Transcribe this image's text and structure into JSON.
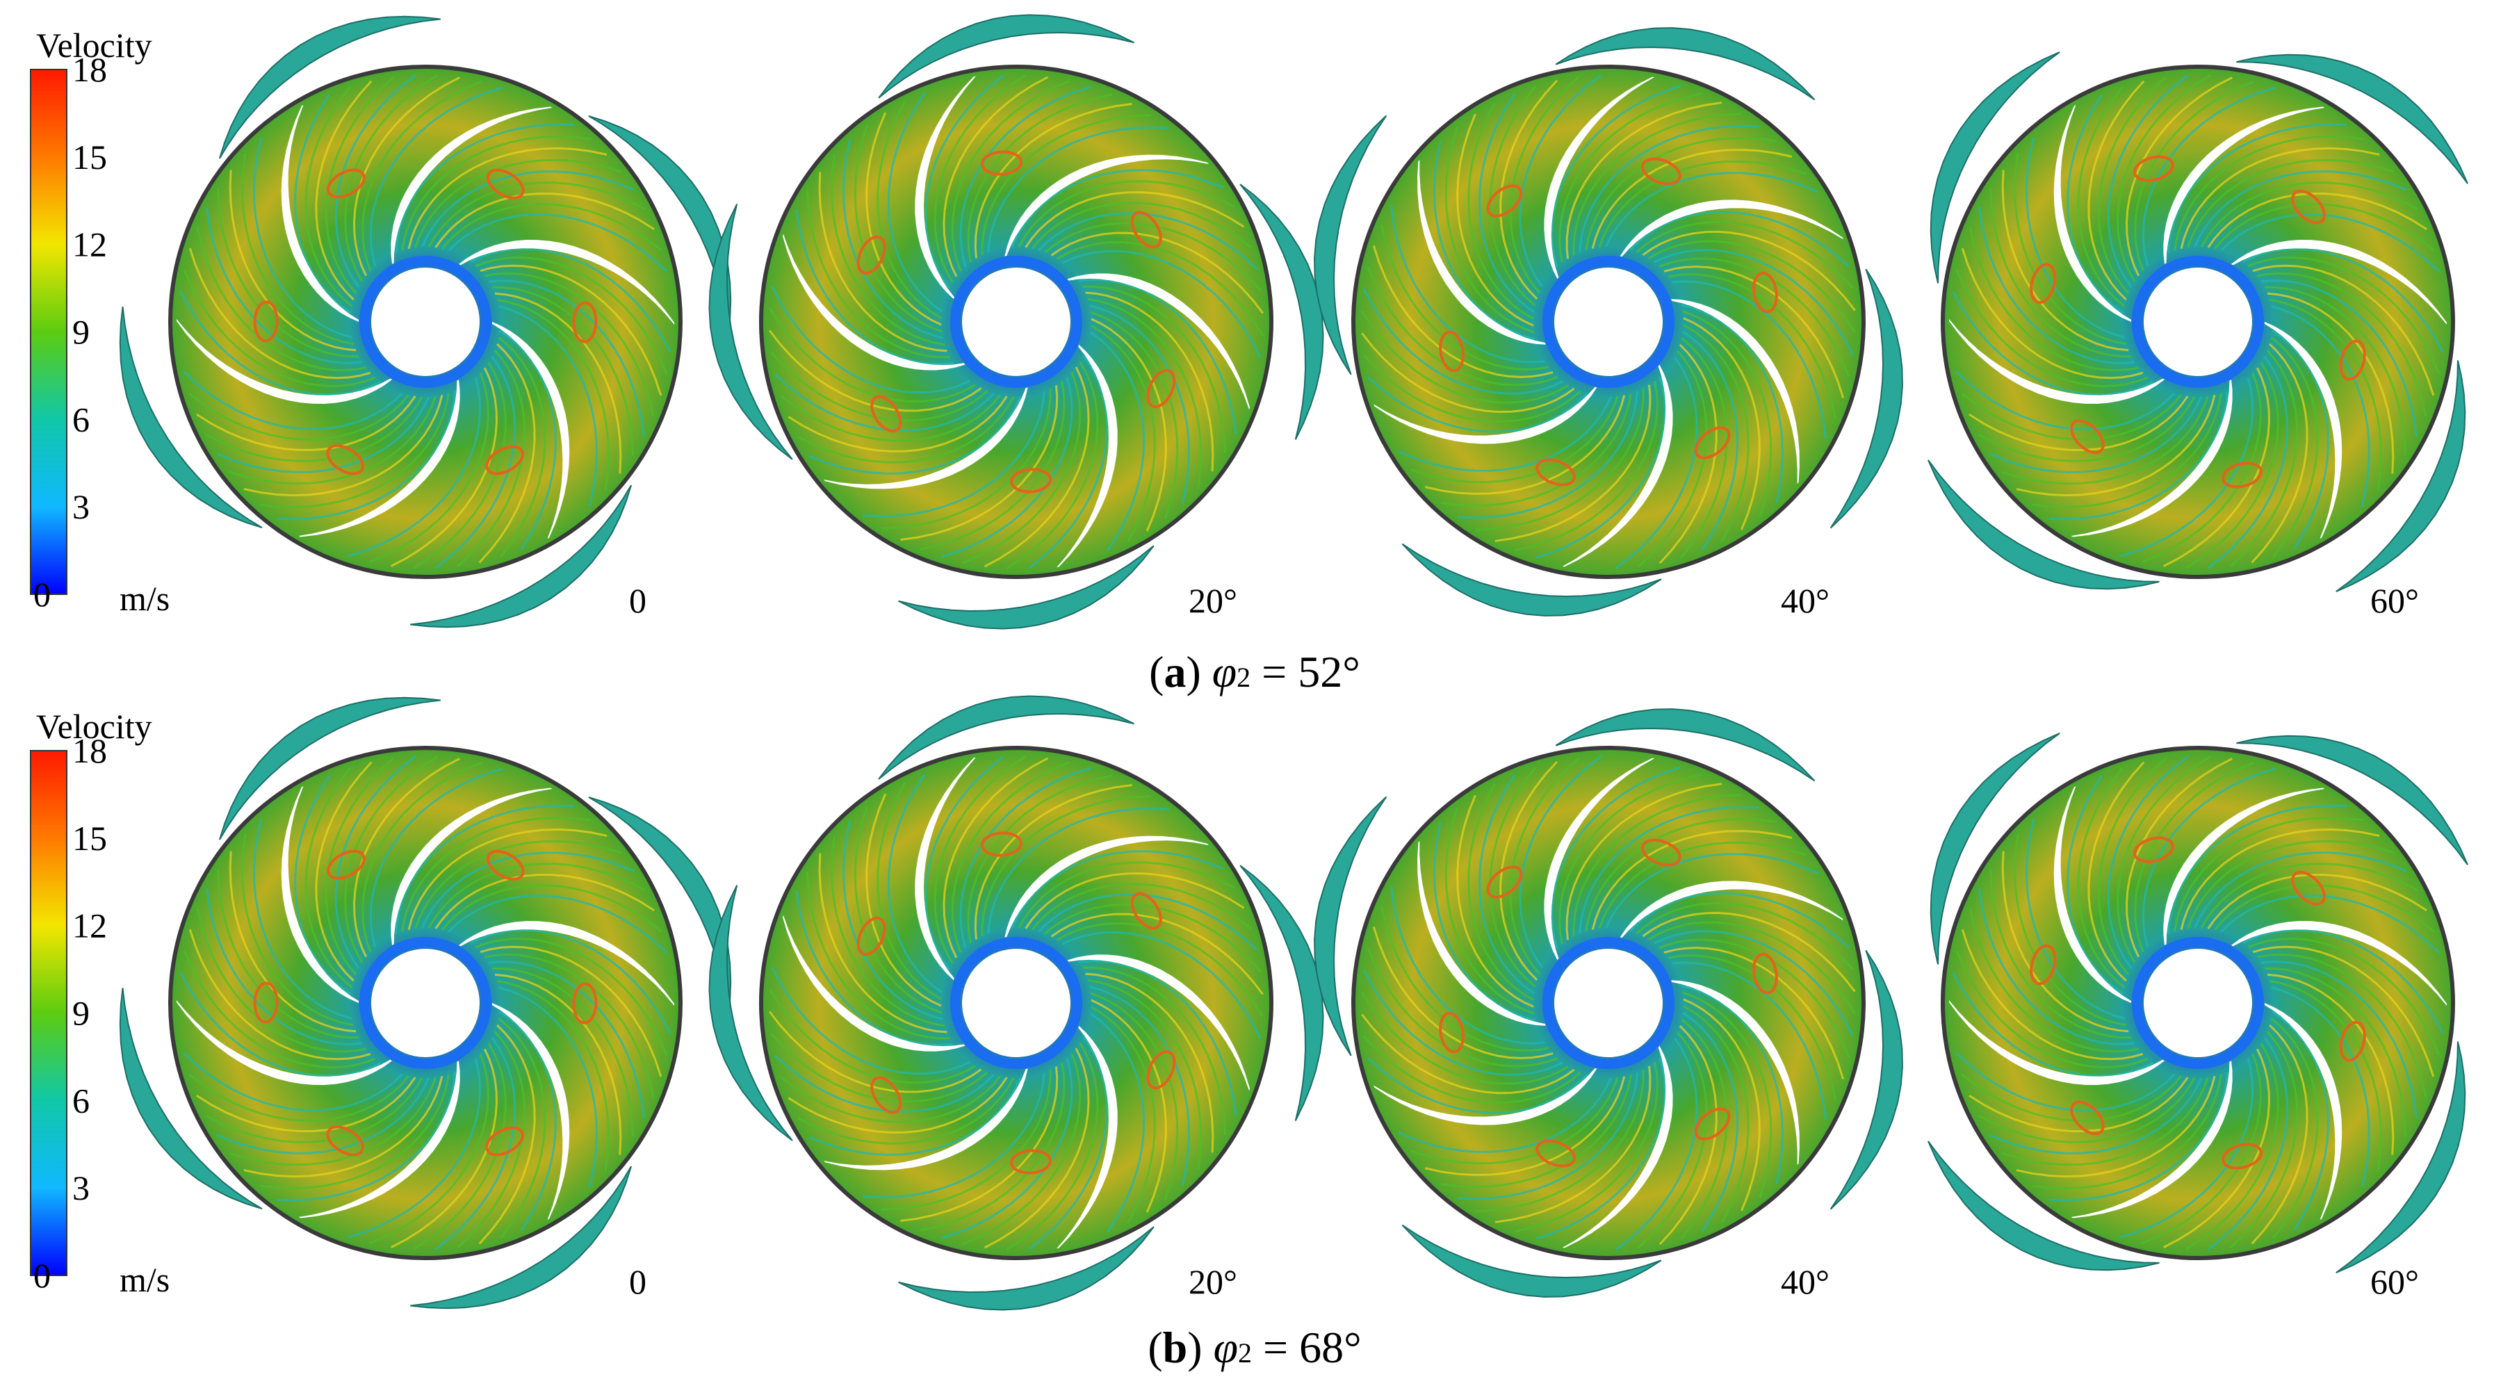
{
  "colorbar": {
    "title": "Velocity",
    "min": 0,
    "max": 18,
    "unit": "m/s",
    "ticks": [
      {
        "value": 18,
        "label": "18"
      },
      {
        "value": 15,
        "label": "15"
      },
      {
        "value": 12,
        "label": "12"
      },
      {
        "value": 9,
        "label": "9"
      },
      {
        "value": 6,
        "label": "6"
      },
      {
        "value": 3,
        "label": "3"
      },
      {
        "value": 0,
        "label": "0"
      }
    ],
    "colors": [
      "#ff1a00",
      "#ff7a00",
      "#f2e600",
      "#5ccc10",
      "#10c8a8",
      "#10b8ff",
      "#0000ff"
    ]
  },
  "rows": [
    {
      "caption_letter": "a",
      "caption_var": "φ",
      "caption_sub": "2",
      "caption_value": " = 52°",
      "panels": [
        {
          "label": "0",
          "rotation": 0
        },
        {
          "label": "20°",
          "rotation": 20
        },
        {
          "label": "40°",
          "rotation": 40
        },
        {
          "label": "60°",
          "rotation": 60
        }
      ]
    },
    {
      "caption_letter": "b",
      "caption_var": "φ",
      "caption_sub": "2",
      "caption_value": " = 68°",
      "panels": [
        {
          "label": "0",
          "rotation": 0
        },
        {
          "label": "20°",
          "rotation": 20
        },
        {
          "label": "40°",
          "rotation": 40
        },
        {
          "label": "60°",
          "rotation": 60
        }
      ]
    }
  ],
  "impeller": {
    "blade_count": 6,
    "volute_tongue_count": 4,
    "colors": {
      "background": "#3a3a3a",
      "streak_slow": "#1fb8b0",
      "streak_mid": "#4cbf2a",
      "streak_fast": "#e8d21a",
      "hot": "#e3631a",
      "hub_glow": "#1a6cf0",
      "blade": "#ffffff",
      "tongue": "#29a89a"
    }
  }
}
